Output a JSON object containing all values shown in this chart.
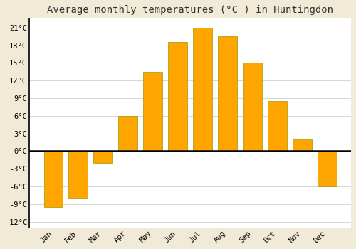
{
  "title": "Average monthly temperatures (°C ) in Huntingdon",
  "months": [
    "Jan",
    "Feb",
    "Mar",
    "Apr",
    "May",
    "Jun",
    "Jul",
    "Aug",
    "Sep",
    "Oct",
    "Nov",
    "Dec"
  ],
  "temperatures": [
    -9.5,
    -8.0,
    -2.0,
    6.0,
    13.5,
    18.5,
    21.0,
    19.5,
    15.0,
    8.5,
    2.0,
    -6.0
  ],
  "bar_color": "#FFA500",
  "bar_edge_color": "#999900",
  "figure_bg_color": "#F0EAD6",
  "plot_bg_color": "#FFFFFF",
  "grid_color": "#D0D0D0",
  "ytick_labels": [
    "-12°C",
    "-9°C",
    "-6°C",
    "-3°C",
    "0°C",
    "3°C",
    "6°C",
    "9°C",
    "12°C",
    "15°C",
    "18°C",
    "21°C"
  ],
  "ytick_values": [
    -12,
    -9,
    -6,
    -3,
    0,
    3,
    6,
    9,
    12,
    15,
    18,
    21
  ],
  "ylim": [
    -13,
    22.5
  ],
  "title_fontsize": 10,
  "tick_fontsize": 7.5,
  "font_family": "monospace",
  "bar_width": 0.75
}
